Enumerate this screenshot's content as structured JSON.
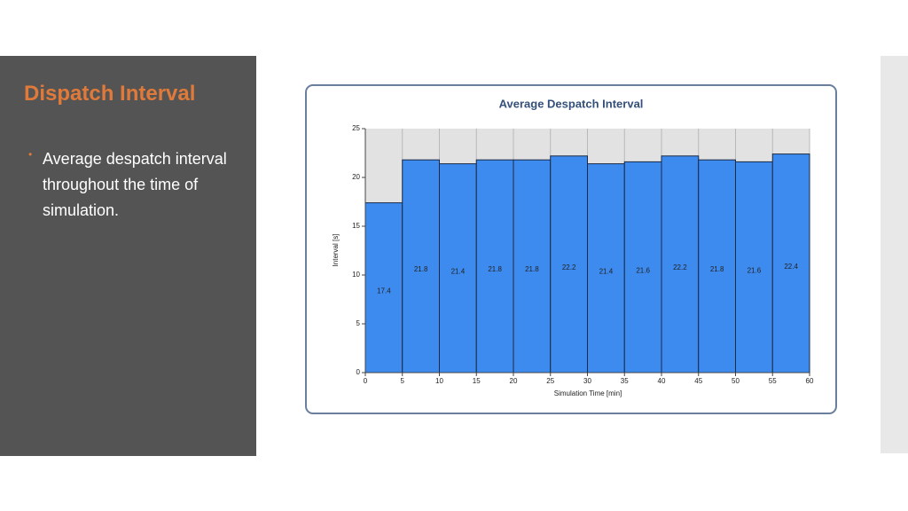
{
  "slide": {
    "title": "Dispatch Interval",
    "bullets": [
      "Average despatch interval throughout the time of simulation."
    ]
  },
  "chart_data": {
    "type": "histogram",
    "title": "Average Despatch Interval",
    "x_label": "Simulation Time [min]",
    "y_label": "Interval [s]",
    "bins": [
      0,
      5,
      10,
      15,
      20,
      25,
      30,
      35,
      40,
      45,
      50,
      55,
      60
    ],
    "values": [
      17.4,
      21.8,
      21.4,
      21.8,
      21.8,
      22.2,
      21.4,
      21.6,
      22.2,
      21.8,
      21.6,
      22.4
    ],
    "color": "#3d8bef",
    "xlim": [
      0,
      60
    ],
    "ylim": [
      0,
      25
    ],
    "xticks": [
      0,
      5,
      10,
      15,
      20,
      25,
      30,
      35,
      40,
      45,
      50,
      55,
      60
    ],
    "yticks": [
      0,
      5,
      10,
      15,
      20,
      25
    ],
    "grid": true
  }
}
